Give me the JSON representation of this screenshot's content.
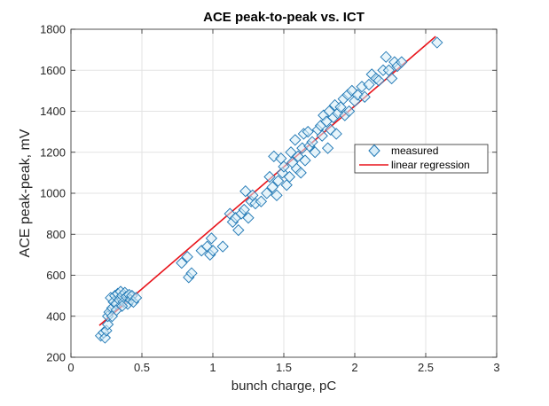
{
  "chart_data": {
    "type": "scatter",
    "title": "ACE peak-to-peak vs. ICT",
    "xlabel": "bunch charge, pC",
    "ylabel": "ACE peak-peak, mV",
    "xlim": [
      0,
      3
    ],
    "ylim": [
      200,
      1800
    ],
    "xticks": [
      0,
      0.5,
      1,
      1.5,
      2,
      2.5,
      3
    ],
    "xtick_labels": [
      "0",
      "0.5",
      "1",
      "1.5",
      "2",
      "2.5",
      "3"
    ],
    "yticks": [
      200,
      400,
      600,
      800,
      1000,
      1200,
      1400,
      1600,
      1800
    ],
    "ytick_labels": [
      "200",
      "400",
      "600",
      "800",
      "1000",
      "1200",
      "1400",
      "1600",
      "1800"
    ],
    "grid": true,
    "legend": {
      "position": "right-middle",
      "entries": [
        "measured",
        "linear regression"
      ]
    },
    "colors": {
      "measured": "#1f77b4",
      "regression": "#e8141b",
      "marker_fill": "#d6ecf8"
    },
    "series": [
      {
        "name": "measured",
        "marker": "diamond",
        "points": [
          [
            0.21,
            305
          ],
          [
            0.23,
            320
          ],
          [
            0.24,
            295
          ],
          [
            0.25,
            330
          ],
          [
            0.26,
            360
          ],
          [
            0.26,
            400
          ],
          [
            0.27,
            420
          ],
          [
            0.28,
            490
          ],
          [
            0.29,
            440
          ],
          [
            0.3,
            470
          ],
          [
            0.31,
            500
          ],
          [
            0.32,
            460
          ],
          [
            0.33,
            510
          ],
          [
            0.34,
            480
          ],
          [
            0.35,
            520
          ],
          [
            0.36,
            500
          ],
          [
            0.37,
            470
          ],
          [
            0.38,
            515
          ],
          [
            0.39,
            495
          ],
          [
            0.4,
            460
          ],
          [
            0.41,
            505
          ],
          [
            0.42,
            480
          ],
          [
            0.43,
            500
          ],
          [
            0.44,
            470
          ],
          [
            0.46,
            490
          ],
          [
            0.32,
            430
          ],
          [
            0.36,
            450
          ],
          [
            0.29,
            400
          ],
          [
            0.78,
            660
          ],
          [
            0.82,
            690
          ],
          [
            0.83,
            590
          ],
          [
            0.85,
            610
          ],
          [
            0.92,
            720
          ],
          [
            0.96,
            740
          ],
          [
            0.98,
            700
          ],
          [
            0.99,
            780
          ],
          [
            1.0,
            720
          ],
          [
            1.07,
            740
          ],
          [
            1.12,
            900
          ],
          [
            1.14,
            860
          ],
          [
            1.16,
            880
          ],
          [
            1.18,
            820
          ],
          [
            1.2,
            900
          ],
          [
            1.22,
            920
          ],
          [
            1.23,
            1010
          ],
          [
            1.25,
            880
          ],
          [
            1.27,
            960
          ],
          [
            1.28,
            990
          ],
          [
            1.3,
            950
          ],
          [
            1.34,
            960
          ],
          [
            1.38,
            1000
          ],
          [
            1.4,
            1080
          ],
          [
            1.42,
            1030
          ],
          [
            1.43,
            1180
          ],
          [
            1.45,
            990
          ],
          [
            1.46,
            1060
          ],
          [
            1.48,
            1170
          ],
          [
            1.49,
            1100
          ],
          [
            1.5,
            1130
          ],
          [
            1.52,
            1040
          ],
          [
            1.54,
            1080
          ],
          [
            1.55,
            1200
          ],
          [
            1.56,
            1150
          ],
          [
            1.58,
            1260
          ],
          [
            1.59,
            1120
          ],
          [
            1.6,
            1180
          ],
          [
            1.62,
            1100
          ],
          [
            1.63,
            1220
          ],
          [
            1.64,
            1290
          ],
          [
            1.65,
            1160
          ],
          [
            1.67,
            1300
          ],
          [
            1.68,
            1230
          ],
          [
            1.7,
            1250
          ],
          [
            1.72,
            1200
          ],
          [
            1.74,
            1310
          ],
          [
            1.76,
            1330
          ],
          [
            1.77,
            1280
          ],
          [
            1.78,
            1380
          ],
          [
            1.8,
            1350
          ],
          [
            1.81,
            1220
          ],
          [
            1.82,
            1400
          ],
          [
            1.83,
            1310
          ],
          [
            1.85,
            1370
          ],
          [
            1.86,
            1430
          ],
          [
            1.87,
            1290
          ],
          [
            1.88,
            1390
          ],
          [
            1.9,
            1420
          ],
          [
            1.92,
            1460
          ],
          [
            1.93,
            1380
          ],
          [
            1.95,
            1480
          ],
          [
            1.96,
            1400
          ],
          [
            1.98,
            1500
          ],
          [
            2.0,
            1450
          ],
          [
            2.02,
            1480
          ],
          [
            2.05,
            1520
          ],
          [
            2.07,
            1470
          ],
          [
            2.1,
            1530
          ],
          [
            2.12,
            1580
          ],
          [
            2.15,
            1560
          ],
          [
            2.17,
            1550
          ],
          [
            2.2,
            1600
          ],
          [
            2.22,
            1665
          ],
          [
            2.24,
            1600
          ],
          [
            2.26,
            1560
          ],
          [
            2.28,
            1640
          ],
          [
            2.3,
            1620
          ],
          [
            2.33,
            1640
          ],
          [
            2.58,
            1735
          ]
        ]
      },
      {
        "name": "linear regression",
        "type": "line",
        "x": [
          0.2,
          2.57
        ],
        "y": [
          355,
          1765
        ]
      }
    ]
  }
}
